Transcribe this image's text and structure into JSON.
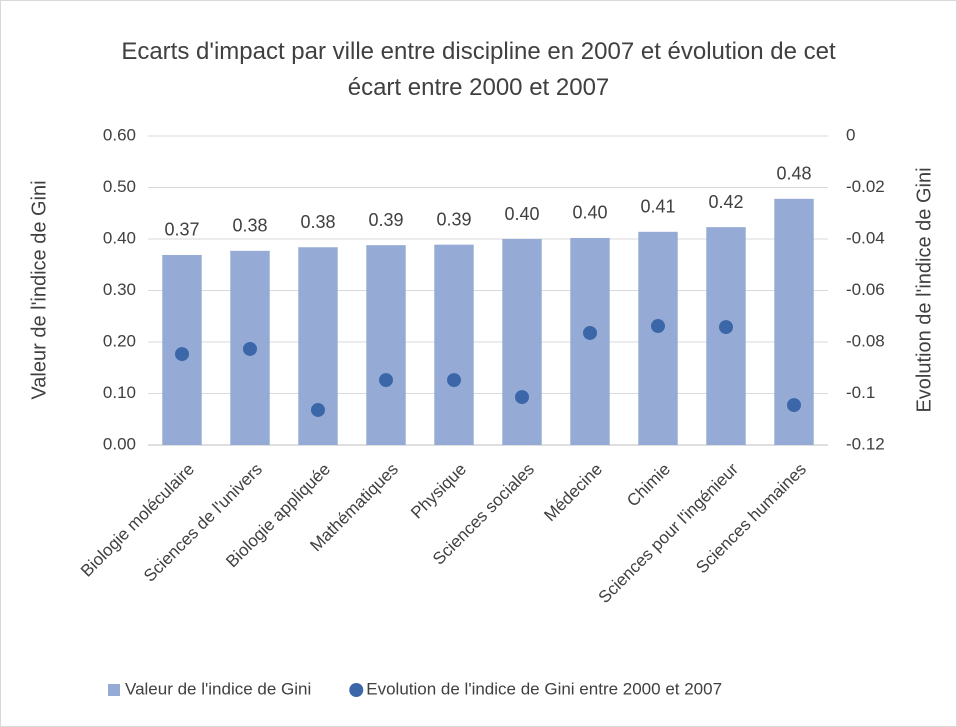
{
  "chart_data": {
    "type": "bar",
    "title": "Ecarts d'impact par ville entre discipline en 2007 et évolution de cet écart entre 2000 et 2007",
    "categories": [
      "Biologie moléculaire",
      "Sciences de l'univers",
      "Biologie appliquée",
      "Mathématiques",
      "Physique",
      "Sciences sociales",
      "Médecine",
      "Chimie",
      "Sciences pour l'ingénieur",
      "Sciences humaines"
    ],
    "series": [
      {
        "name": "Valeur de l'indice de Gini",
        "type": "bar",
        "color": "#95abd6",
        "values": [
          0.369,
          0.377,
          0.384,
          0.388,
          0.389,
          0.4,
          0.402,
          0.414,
          0.423,
          0.478
        ],
        "value_labels": [
          "0.37",
          "0.38",
          "0.38",
          "0.39",
          "0.39",
          "0.40",
          "0.40",
          "0.41",
          "0.42",
          "0.48"
        ]
      },
      {
        "name": "Evolution de l'indice de Gini entre 2000 et 2007",
        "type": "scatter",
        "axis": "y2",
        "color": "#3b67a8",
        "values": [
          -0.0847,
          -0.0827,
          -0.1064,
          -0.0948,
          -0.0948,
          -0.1014,
          -0.0765,
          -0.0738,
          -0.0742,
          -0.1045
        ]
      }
    ],
    "y_label": "Valeur de l'indice de Gini",
    "y2_label": "Evolution de l'indice de Gini",
    "ylim": [
      0,
      0.6
    ],
    "yticks": [
      {
        "value": 0,
        "label": "0.00"
      },
      {
        "value": 0.1,
        "label": "0.10"
      },
      {
        "value": 0.2,
        "label": "0.20"
      },
      {
        "value": 0.3,
        "label": "0.30"
      },
      {
        "value": 0.4,
        "label": "0.40"
      },
      {
        "value": 0.5,
        "label": "0.50"
      },
      {
        "value": 0.6,
        "label": "0.60"
      }
    ],
    "y2lim": [
      -0.12,
      0
    ],
    "y2ticks": [
      0,
      -0.02,
      -0.04,
      -0.06,
      -0.08,
      -0.1,
      -0.12
    ],
    "grid": true,
    "legend": "bottom"
  }
}
